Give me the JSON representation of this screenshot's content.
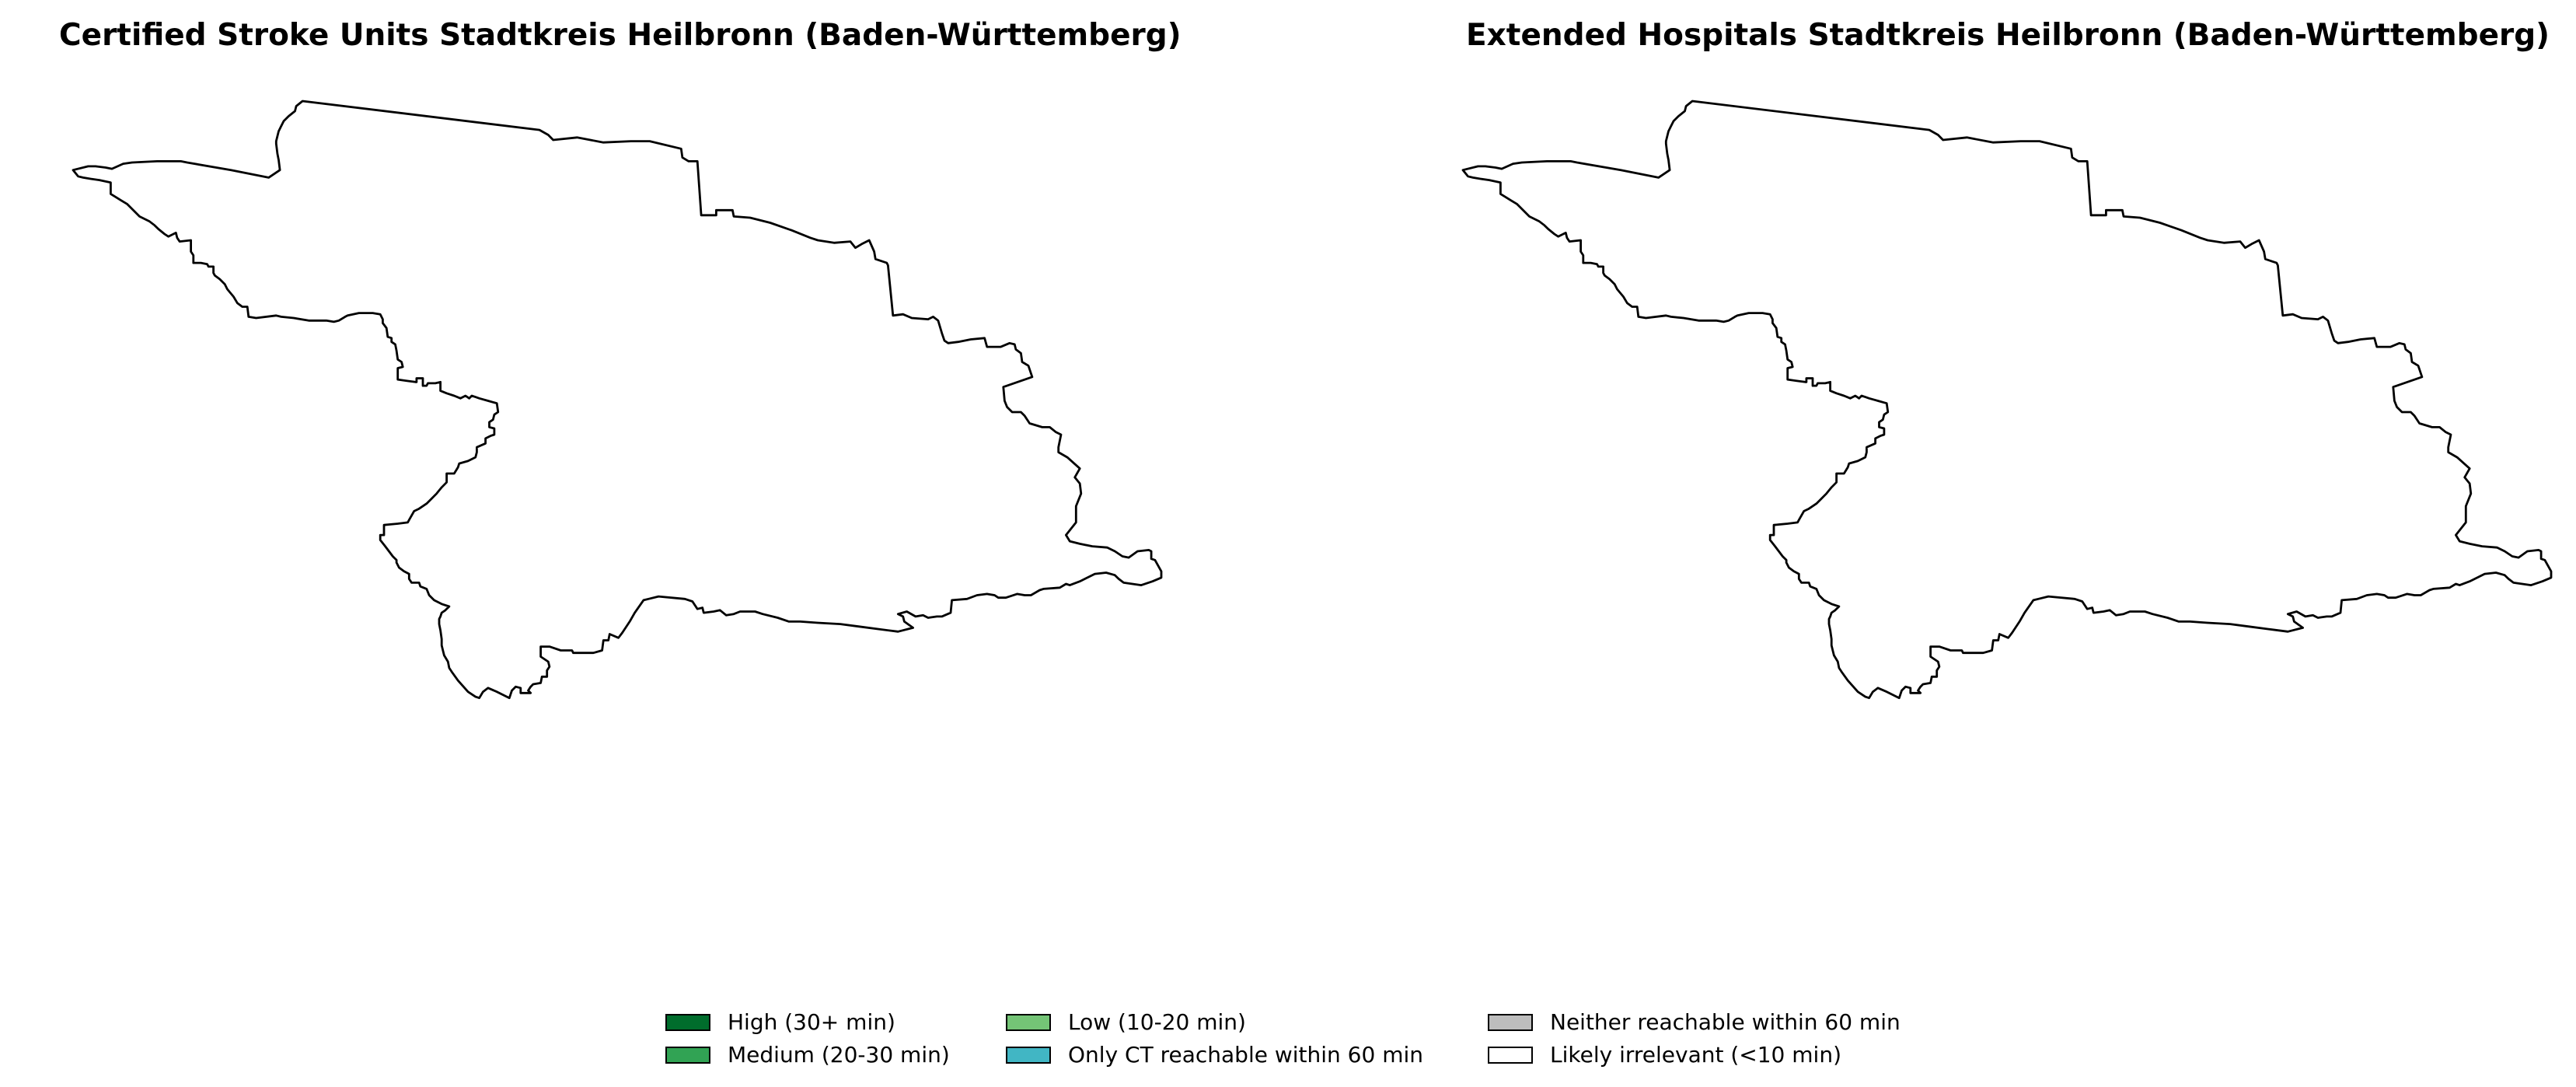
{
  "maps": [
    {
      "title": "Certified Stroke Units Stadtkreis Heilbronn (Baden-Württemberg)",
      "region": "Stadtkreis Heilbronn",
      "fill_color": "#ffffff"
    },
    {
      "title": "Extended Hospitals Stadtkreis Heilbronn (Baden-Württemberg)",
      "region": "Stadtkreis Heilbronn",
      "fill_color": "#ffffff"
    }
  ],
  "legend": {
    "items": [
      {
        "label": "High (30+ min)",
        "color": "#006d2c"
      },
      {
        "label": "Medium (20-30 min)",
        "color": "#31a354"
      },
      {
        "label": "Low (10-20 min)",
        "color": "#74c476"
      },
      {
        "label": "Only CT reachable within 60 min",
        "color": "#41b6c4"
      },
      {
        "label": "Neither reachable within 60 min",
        "color": "#bdbdbd"
      },
      {
        "label": "Likely irrelevant (<10 min)",
        "color": "#ffffff"
      }
    ]
  },
  "colors": {
    "outline": "#000000",
    "background": "#ffffff"
  }
}
